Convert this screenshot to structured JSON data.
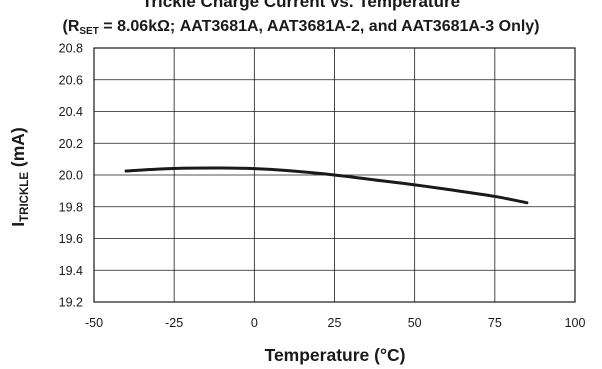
{
  "chart_data": {
    "type": "line",
    "title": "Trickle Charge Current vs. Temperature",
    "subtitle_prefix": "(R",
    "subtitle_sub": "SET",
    "subtitle_rest": " = 8.06kΩ; AAT3681A, AAT3681A-2, and AAT3681A-3 Only)",
    "xlabel": "Temperature (°C)",
    "ylabel_main": "I",
    "ylabel_sub": "TRICKLE",
    "ylabel_rest": " (mA)",
    "xlim": [
      -50,
      100
    ],
    "ylim": [
      19.2,
      20.8
    ],
    "x_ticks": [
      -50,
      -25,
      0,
      25,
      50,
      75,
      100
    ],
    "x_tick_labels": [
      "-50",
      "-25",
      "0",
      "25",
      "50",
      "75",
      "100"
    ],
    "y_ticks": [
      19.2,
      19.4,
      19.6,
      19.8,
      20.0,
      20.2,
      20.4,
      20.6,
      20.8
    ],
    "y_tick_labels": [
      "19.2",
      "19.4",
      "19.6",
      "19.8",
      "20.0",
      "20.2",
      "20.4",
      "20.6",
      "20.8"
    ],
    "grid": true,
    "series": [
      {
        "x": [
          -40,
          -30,
          -20,
          -10,
          0,
          10,
          25,
          40,
          50,
          60,
          75,
          85
        ],
        "y": [
          20.025,
          20.037,
          20.043,
          20.044,
          20.04,
          20.028,
          20.0,
          19.963,
          19.938,
          19.91,
          19.865,
          19.825
        ],
        "color": "#1a1a1a"
      }
    ]
  }
}
